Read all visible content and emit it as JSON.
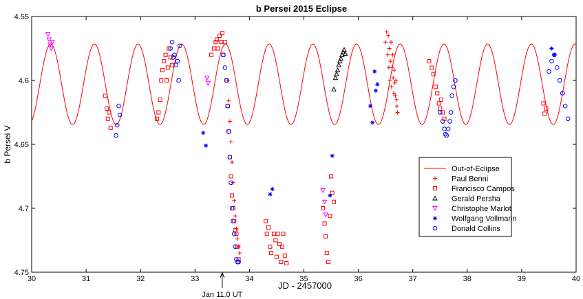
{
  "chart_data": {
    "type": "scatter",
    "title": "b Persei 2015 Eclipse",
    "xlabel": "JD - 2457000",
    "ylabel": "b Persei V",
    "xlim": [
      30,
      40
    ],
    "ylim": [
      4.55,
      4.75
    ],
    "y_inverted": true,
    "grid": false,
    "legend_position": "lower-right",
    "x_ticks": [
      "30",
      "31",
      "32",
      "33",
      "34",
      "35",
      "36",
      "37",
      "38",
      "39",
      "40"
    ],
    "y_ticks": [
      "4.55",
      "4.6",
      "4.65",
      "4.7",
      "4.75"
    ],
    "annotation": {
      "text": "Jan 11.0 UT",
      "x": 33.5
    },
    "series": [
      {
        "name": "Out-of-Eclipse",
        "kind": "line",
        "color": "#ff0000",
        "model": {
          "mean": 4.603,
          "amplitude": 0.0315,
          "period": 0.8025,
          "peak_x": 30.35
        },
        "x": [
          30.0,
          30.1,
          30.2,
          30.35,
          30.5,
          30.6,
          30.75,
          30.9,
          31.0,
          31.15,
          31.3,
          31.4,
          31.55,
          31.7,
          31.8,
          31.95,
          32.1,
          32.2,
          32.35,
          32.5,
          32.6,
          32.75,
          32.9,
          33.0,
          33.15,
          33.3,
          33.4,
          33.55,
          33.7,
          33.8,
          33.95,
          34.1,
          34.2,
          34.35,
          34.5,
          34.6,
          34.75,
          34.9,
          35.0,
          35.15,
          35.3,
          35.4,
          35.55,
          35.7,
          35.8,
          35.95,
          36.1,
          36.2,
          36.35,
          36.5,
          36.6,
          36.75,
          36.9,
          37.0,
          37.15,
          37.3,
          37.4,
          37.55,
          37.7,
          37.8,
          37.95,
          38.1,
          38.2,
          38.35,
          38.5,
          38.6,
          38.75,
          38.9,
          39.0,
          39.15,
          39.3,
          39.4,
          39.55,
          39.7,
          39.8,
          39.95,
          40.0
        ],
        "y": [
          4.633,
          4.615,
          4.59,
          4.572,
          4.588,
          4.605,
          4.626,
          4.633,
          4.62,
          4.6,
          4.578,
          4.573,
          4.585,
          4.608,
          4.626,
          4.634,
          4.622,
          4.598,
          4.577,
          4.574,
          4.59,
          4.612,
          4.63,
          4.634,
          4.615,
          4.592,
          4.573,
          4.577,
          4.597,
          4.618,
          4.633,
          4.628,
          4.605,
          4.583,
          4.572,
          4.582,
          4.603,
          4.625,
          4.634,
          4.62,
          4.598,
          4.576,
          4.574,
          4.592,
          4.614,
          4.632,
          4.631,
          4.61,
          4.585,
          4.572,
          4.581,
          4.603,
          4.626,
          4.634,
          4.618,
          4.595,
          4.575,
          4.575,
          4.594,
          4.617,
          4.633,
          4.63,
          4.607,
          4.583,
          4.572,
          4.583,
          4.604,
          4.627,
          4.634,
          4.618,
          4.594,
          4.574,
          4.576,
          4.596,
          4.619,
          4.633,
          4.623
        ]
      },
      {
        "name": "Paul Benni",
        "kind": "marker",
        "marker": "plus",
        "color": "#ff0000",
        "x": [
          33.6,
          33.62,
          33.64,
          33.66,
          33.68,
          33.7,
          33.72,
          33.74,
          33.76,
          33.78,
          33.8,
          33.82,
          36.5,
          36.52,
          36.54,
          36.55,
          36.56,
          36.57,
          36.58,
          36.59,
          36.6,
          36.61,
          36.62,
          36.63,
          36.64,
          36.65,
          36.66,
          36.67,
          36.68,
          36.69,
          36.7,
          36.71,
          36.72
        ],
        "y": [
          4.6,
          4.616,
          4.632,
          4.648,
          4.664,
          4.68,
          4.694,
          4.706,
          4.716,
          4.724,
          4.73,
          4.735,
          4.57,
          4.562,
          4.58,
          4.565,
          4.59,
          4.575,
          4.6,
          4.585,
          4.57,
          4.605,
          4.59,
          4.58,
          4.598,
          4.61,
          4.592,
          4.602,
          4.612,
          4.6,
          4.615,
          4.62,
          4.625
        ]
      },
      {
        "name": "Francisco Campos",
        "kind": "marker",
        "marker": "square",
        "color": "#ff0000",
        "x": [
          31.35,
          31.38,
          31.4,
          31.42,
          31.45,
          32.3,
          32.33,
          32.36,
          32.38,
          32.4,
          32.43,
          32.46,
          32.48,
          32.5,
          32.52,
          32.55,
          32.58,
          33.3,
          33.35,
          33.38,
          33.4,
          33.42,
          33.45,
          33.48,
          33.5,
          33.52,
          33.55,
          33.58,
          33.6,
          33.62,
          33.64,
          33.66,
          33.68,
          33.7,
          33.72,
          33.74,
          33.76,
          33.78,
          33.8,
          34.3,
          34.32,
          34.35,
          34.38,
          34.4,
          34.45,
          34.48,
          34.5,
          34.52,
          34.55,
          34.58,
          34.6,
          34.62,
          34.65,
          34.68,
          35.35,
          35.38,
          35.4,
          35.42,
          35.45,
          35.48,
          35.5,
          35.52,
          35.55,
          37.3,
          37.35,
          37.38,
          37.42,
          37.45,
          37.48,
          37.5,
          37.52,
          37.55,
          37.58,
          39.4,
          39.42,
          39.45
        ],
        "y": [
          4.612,
          4.622,
          4.63,
          4.625,
          4.637,
          4.63,
          4.625,
          4.615,
          4.6,
          4.592,
          4.585,
          4.58,
          4.6,
          4.59,
          4.575,
          4.582,
          4.588,
          4.58,
          4.575,
          4.57,
          4.568,
          4.575,
          4.565,
          4.57,
          4.563,
          4.58,
          4.57,
          4.6,
          4.62,
          4.64,
          4.66,
          4.675,
          4.69,
          4.7,
          4.71,
          4.717,
          4.72,
          4.73,
          4.74,
          4.71,
          4.72,
          4.715,
          4.73,
          4.735,
          4.72,
          4.725,
          4.738,
          4.72,
          4.728,
          4.742,
          4.73,
          4.72,
          4.737,
          4.743,
          4.7,
          4.712,
          4.722,
          4.735,
          4.742,
          4.706,
          4.675,
          4.688,
          4.695,
          4.585,
          4.59,
          4.595,
          4.605,
          4.61,
          4.618,
          4.622,
          4.615,
          4.625,
          4.63,
          4.618,
          4.626,
          4.622
        ]
      },
      {
        "name": "Gerald Persha",
        "kind": "marker",
        "marker": "triangle-up",
        "color": "#000000",
        "x": [
          35.55,
          35.58,
          35.6,
          35.62,
          35.64,
          35.66,
          35.68,
          35.7,
          35.72,
          35.74,
          35.76
        ],
        "y": [
          4.607,
          4.598,
          4.595,
          4.592,
          4.588,
          4.585,
          4.583,
          4.58,
          4.578,
          4.576,
          4.579
        ]
      },
      {
        "name": "Christophe Marlot",
        "kind": "marker",
        "marker": "triangle-down",
        "color": "#ff00ff",
        "x": [
          30.3,
          30.32,
          30.34,
          30.36,
          30.38,
          33.22,
          33.24,
          35.35,
          35.38,
          35.4
        ],
        "y": [
          4.564,
          4.568,
          4.572,
          4.575,
          4.57,
          4.598,
          4.602,
          4.686,
          4.695,
          4.705
        ]
      },
      {
        "name": "Wolfgang Vollmann",
        "kind": "marker",
        "marker": "asterisk",
        "color": "#0000ff",
        "x": [
          33.15,
          33.2,
          34.38,
          34.42,
          35.48,
          35.52,
          36.22,
          36.26,
          36.3,
          36.32,
          36.35,
          39.55,
          39.6
        ],
        "y": [
          4.641,
          4.651,
          4.689,
          4.685,
          4.69,
          4.659,
          4.62,
          4.633,
          4.593,
          4.608,
          4.603,
          4.575,
          4.58
        ]
      },
      {
        "name": "Donald Collins",
        "kind": "marker",
        "marker": "circle",
        "color": "#0000ff",
        "x": [
          31.55,
          31.57,
          31.6,
          31.62,
          32.55,
          32.58,
          32.6,
          32.62,
          32.65,
          32.68,
          32.7,
          32.72,
          33.52,
          33.55,
          33.58,
          33.6,
          33.62,
          33.64,
          33.66,
          33.68,
          33.7,
          33.72,
          33.74,
          33.76,
          33.78,
          33.8,
          37.5,
          37.55,
          37.58,
          37.6,
          37.62,
          37.65,
          37.68,
          37.7,
          37.72,
          37.75,
          37.78,
          39.5,
          39.55,
          39.6,
          39.65,
          39.7,
          39.75,
          39.8,
          39.85
        ],
        "y": [
          4.643,
          4.635,
          4.62,
          4.627,
          4.575,
          4.57,
          4.582,
          4.58,
          4.588,
          4.585,
          4.6,
          4.573,
          4.58,
          4.59,
          4.6,
          4.62,
          4.64,
          4.66,
          4.68,
          4.7,
          4.71,
          4.72,
          4.73,
          4.74,
          4.742,
          4.742,
          4.625,
          4.632,
          4.638,
          4.642,
          4.643,
          4.638,
          4.632,
          4.625,
          4.612,
          4.605,
          4.6,
          4.593,
          4.585,
          4.58,
          4.59,
          4.6,
          4.61,
          4.62,
          4.63
        ]
      }
    ]
  }
}
